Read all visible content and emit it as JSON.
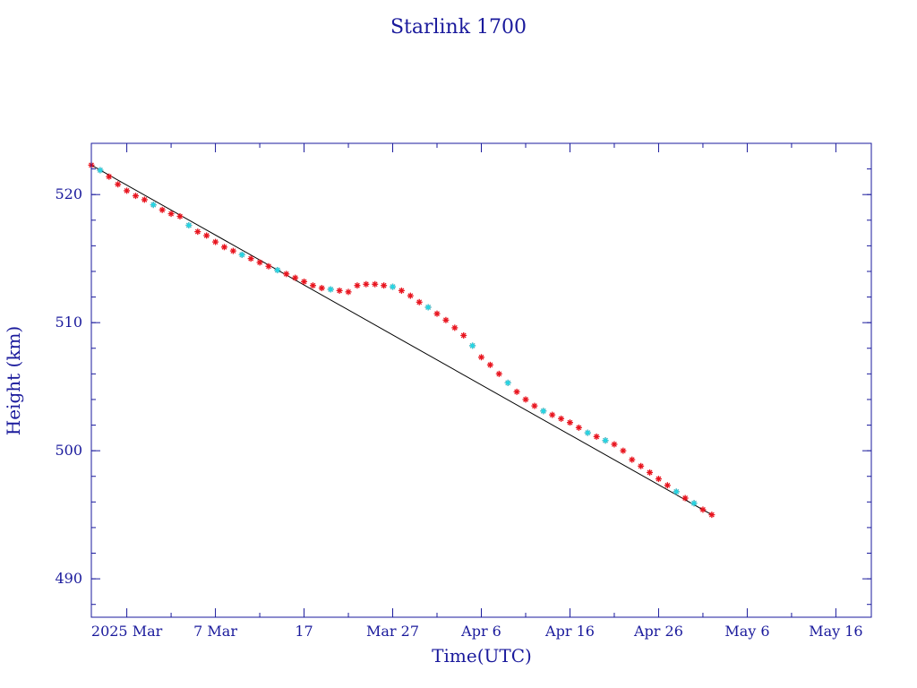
{
  "chart_data": {
    "type": "scatter",
    "title": "Starlink 1700",
    "xlabel": "Time(UTC)",
    "ylabel": "Height (km)",
    "x_axis": {
      "range": [
        "2025-02-21T00:00",
        "2025-05-20T00:00"
      ],
      "major_ticks": [
        {
          "date": "2025-02-25",
          "label": "2025 Mar"
        },
        {
          "date": "2025-03-07",
          "label": "7 Mar"
        },
        {
          "date": "2025-03-17",
          "label": "17"
        },
        {
          "date": "2025-03-27",
          "label": "Mar 27"
        },
        {
          "date": "2025-04-06",
          "label": "Apr  6"
        },
        {
          "date": "2025-04-16",
          "label": "Apr 16"
        },
        {
          "date": "2025-04-26",
          "label": "Apr 26"
        },
        {
          "date": "2025-05-06",
          "label": "May  6"
        },
        {
          "date": "2025-05-16",
          "label": "May 16"
        }
      ],
      "minor_ticks": [
        "2025-03-02",
        "2025-03-12",
        "2025-03-22",
        "2025-04-01",
        "2025-04-11",
        "2025-04-21",
        "2025-05-01",
        "2025-05-11"
      ]
    },
    "y_axis": {
      "range": [
        487,
        524
      ],
      "major_ticks": [
        490,
        500,
        510,
        520
      ],
      "minor_step": 2
    },
    "grid": false,
    "series": [
      {
        "color": "#e8141e",
        "marker": "asterisk",
        "points": [
          [
            "2025-02-21",
            522.3
          ],
          [
            "2025-02-22",
            521.9
          ],
          [
            "2025-02-23",
            521.4
          ],
          [
            "2025-02-24",
            520.8
          ],
          [
            "2025-02-25",
            520.3
          ],
          [
            "2025-02-26",
            519.9
          ],
          [
            "2025-02-27",
            519.6
          ],
          [
            "2025-02-28",
            519.2
          ],
          [
            "2025-03-01",
            518.8
          ],
          [
            "2025-03-02",
            518.5
          ],
          [
            "2025-03-03",
            518.3
          ],
          [
            "2025-03-04",
            517.6
          ],
          [
            "2025-03-05",
            517.1
          ],
          [
            "2025-03-06",
            516.8
          ],
          [
            "2025-03-07",
            516.3
          ],
          [
            "2025-03-08",
            515.9
          ],
          [
            "2025-03-09",
            515.6
          ],
          [
            "2025-03-10",
            515.3
          ],
          [
            "2025-03-11",
            515.0
          ],
          [
            "2025-03-12",
            514.7
          ],
          [
            "2025-03-13",
            514.4
          ],
          [
            "2025-03-14",
            514.1
          ],
          [
            "2025-03-15",
            513.8
          ],
          [
            "2025-03-16",
            513.5
          ],
          [
            "2025-03-17",
            513.2
          ],
          [
            "2025-03-18",
            512.9
          ],
          [
            "2025-03-19",
            512.7
          ],
          [
            "2025-03-20",
            512.6
          ],
          [
            "2025-03-21",
            512.5
          ],
          [
            "2025-03-22",
            512.4
          ],
          [
            "2025-03-23",
            512.9
          ],
          [
            "2025-03-24",
            513.0
          ],
          [
            "2025-03-25",
            513.0
          ],
          [
            "2025-03-26",
            512.9
          ],
          [
            "2025-03-27",
            512.8
          ],
          [
            "2025-03-28",
            512.5
          ],
          [
            "2025-03-29",
            512.1
          ],
          [
            "2025-03-30",
            511.6
          ],
          [
            "2025-03-31",
            511.2
          ],
          [
            "2025-04-01",
            510.7
          ],
          [
            "2025-04-02",
            510.2
          ],
          [
            "2025-04-03",
            509.6
          ],
          [
            "2025-04-04",
            509.0
          ],
          [
            "2025-04-05",
            508.2
          ],
          [
            "2025-04-06",
            507.3
          ],
          [
            "2025-04-07",
            506.7
          ],
          [
            "2025-04-08",
            506.0
          ],
          [
            "2025-04-09",
            505.3
          ],
          [
            "2025-04-10",
            504.6
          ],
          [
            "2025-04-11",
            504.0
          ],
          [
            "2025-04-12",
            503.5
          ],
          [
            "2025-04-13",
            503.1
          ],
          [
            "2025-04-14",
            502.8
          ],
          [
            "2025-04-15",
            502.5
          ],
          [
            "2025-04-16",
            502.2
          ],
          [
            "2025-04-17",
            501.8
          ],
          [
            "2025-04-18",
            501.4
          ],
          [
            "2025-04-19",
            501.1
          ],
          [
            "2025-04-20",
            500.8
          ],
          [
            "2025-04-21",
            500.5
          ],
          [
            "2025-04-22",
            500.0
          ],
          [
            "2025-04-23",
            499.3
          ],
          [
            "2025-04-24",
            498.8
          ],
          [
            "2025-04-25",
            498.3
          ],
          [
            "2025-04-26",
            497.8
          ],
          [
            "2025-04-27",
            497.3
          ],
          [
            "2025-04-28",
            496.8
          ],
          [
            "2025-04-29",
            496.3
          ],
          [
            "2025-04-30",
            495.9
          ],
          [
            "2025-05-01",
            495.4
          ],
          [
            "2025-05-02",
            495.0
          ]
        ]
      },
      {
        "color": "#20d8e6",
        "marker": "asterisk",
        "points": [
          [
            "2025-02-22",
            521.9
          ],
          [
            "2025-02-28",
            519.2
          ],
          [
            "2025-03-04",
            517.6
          ],
          [
            "2025-03-10",
            515.3
          ],
          [
            "2025-03-14",
            514.1
          ],
          [
            "2025-03-20",
            512.6
          ],
          [
            "2025-03-27",
            512.8
          ],
          [
            "2025-03-31",
            511.2
          ],
          [
            "2025-04-05",
            508.2
          ],
          [
            "2025-04-09",
            505.3
          ],
          [
            "2025-04-13",
            503.1
          ],
          [
            "2025-04-18",
            501.4
          ],
          [
            "2025-04-20",
            500.8
          ],
          [
            "2025-04-28",
            496.8
          ],
          [
            "2025-04-30",
            495.9
          ]
        ]
      }
    ]
  }
}
